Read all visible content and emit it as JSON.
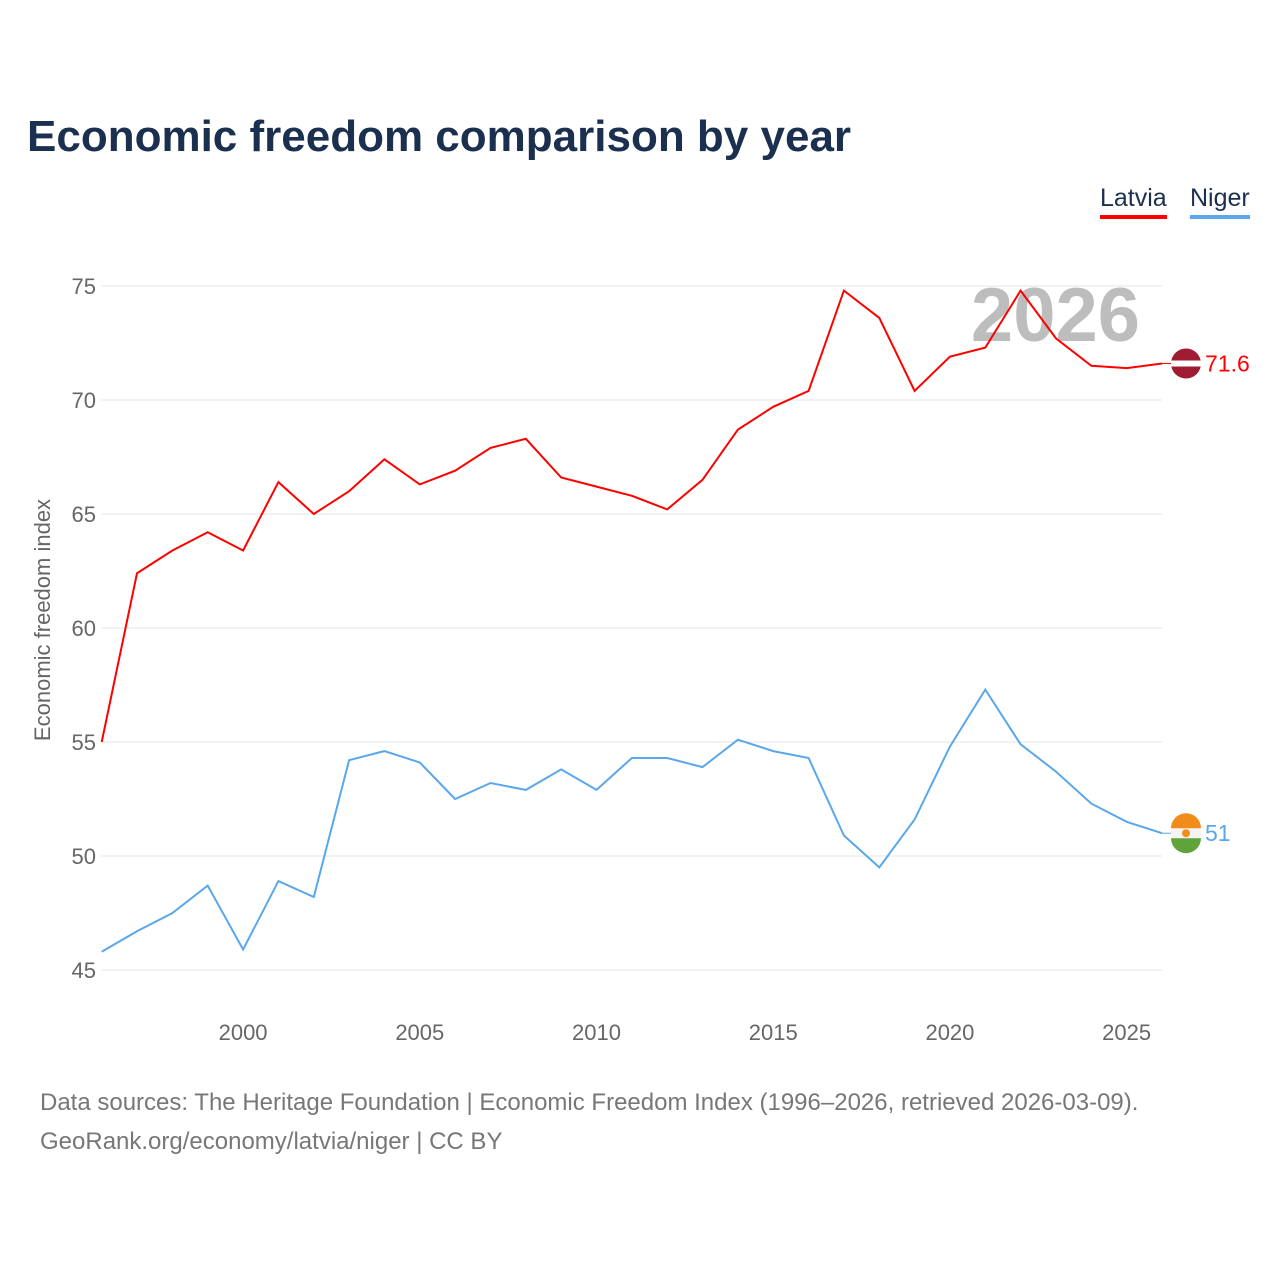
{
  "title": "Economic freedom comparison by year",
  "chart_data": {
    "type": "line",
    "title": "Economic freedom comparison by year",
    "xlabel": "",
    "ylabel": "Economic freedom index",
    "xlim": [
      1996,
      2026
    ],
    "ylim": [
      45,
      75
    ],
    "yticks": [
      45,
      50,
      55,
      60,
      65,
      70,
      75
    ],
    "xticks": [
      2000,
      2005,
      2010,
      2015,
      2020,
      2025
    ],
    "grid": true,
    "legend_position": "top-right",
    "year_watermark": "2026",
    "x": [
      1996,
      1997,
      1998,
      1999,
      2000,
      2001,
      2002,
      2003,
      2004,
      2005,
      2006,
      2007,
      2008,
      2009,
      2010,
      2011,
      2012,
      2013,
      2014,
      2015,
      2016,
      2017,
      2018,
      2019,
      2020,
      2021,
      2022,
      2023,
      2024,
      2025,
      2026
    ],
    "series": [
      {
        "name": "Latvia",
        "color": "#ff0000",
        "end_label": "71.6",
        "values": [
          55.0,
          62.4,
          63.4,
          64.2,
          63.4,
          66.4,
          65.0,
          66.0,
          67.4,
          66.3,
          66.9,
          67.9,
          68.3,
          66.6,
          66.2,
          65.8,
          65.2,
          66.5,
          68.7,
          69.7,
          70.4,
          74.8,
          73.6,
          70.4,
          71.9,
          72.3,
          74.8,
          72.7,
          71.5,
          71.4,
          71.6
        ]
      },
      {
        "name": "Niger",
        "color": "#5aa7ea",
        "end_label": "51",
        "values": [
          45.8,
          46.7,
          47.5,
          48.7,
          45.9,
          48.9,
          48.2,
          54.2,
          54.6,
          54.1,
          52.5,
          53.2,
          52.9,
          53.8,
          52.9,
          54.3,
          54.3,
          53.9,
          55.1,
          54.6,
          54.3,
          50.9,
          49.5,
          51.6,
          54.8,
          57.3,
          54.9,
          53.7,
          52.3,
          51.5,
          51.0
        ]
      }
    ]
  },
  "footer": {
    "line1": "Data sources: The Heritage Foundation | Economic Freedom Index (1996–2026, retrieved 2026-03-09).",
    "line2": "GeoRank.org/economy/latvia/niger | CC BY"
  }
}
